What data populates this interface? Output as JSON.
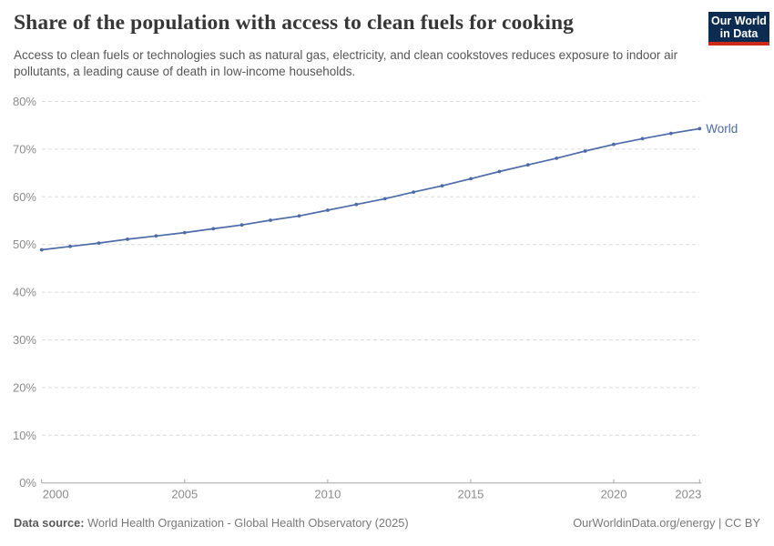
{
  "header": {
    "title": "Share of the population with access to clean fuels for cooking",
    "subtitle": "Access to clean fuels or technologies such as natural gas, electricity, and clean cookstoves reduces exposure to indoor air pollutants, a leading cause of death in low-income households.",
    "logo": {
      "line1": "Our World",
      "line2": "in Data",
      "bg_color": "#0c2c52",
      "accent_color": "#cf2a19"
    }
  },
  "footer": {
    "source_label": "Data source:",
    "source_text": " World Health Organization - Global Health Observatory (2025)",
    "rights": "OurWorldinData.org/energy | CC BY"
  },
  "chart_data": {
    "type": "line",
    "title": "Share of the population with access to clean fuels for cooking",
    "xlabel": "",
    "ylabel": "",
    "x": [
      2000,
      2001,
      2002,
      2003,
      2004,
      2005,
      2006,
      2007,
      2008,
      2009,
      2010,
      2011,
      2012,
      2013,
      2014,
      2015,
      2016,
      2017,
      2018,
      2019,
      2020,
      2021,
      2022,
      2023
    ],
    "series": [
      {
        "name": "World",
        "color": "#4c6ba8",
        "values": [
          48.9,
          49.6,
          50.3,
          51.1,
          51.8,
          52.5,
          53.3,
          54.1,
          55.1,
          56.0,
          57.2,
          58.4,
          59.6,
          61.0,
          62.3,
          63.8,
          65.3,
          66.7,
          68.1,
          69.6,
          71.0,
          72.2,
          73.3,
          74.3
        ]
      }
    ],
    "ylim": [
      0,
      80
    ],
    "yticks": [
      0,
      10,
      20,
      30,
      40,
      50,
      60,
      70,
      80
    ],
    "ytick_suffix": "%",
    "xticks": [
      2000,
      2005,
      2010,
      2015,
      2020,
      2023
    ],
    "grid": "horizontal-dashed",
    "legend": "end-of-line-label",
    "grid_color": "#dcdcdc",
    "axis_color": "#a3a3a3",
    "tick_label_color": "#8b8b8b"
  }
}
